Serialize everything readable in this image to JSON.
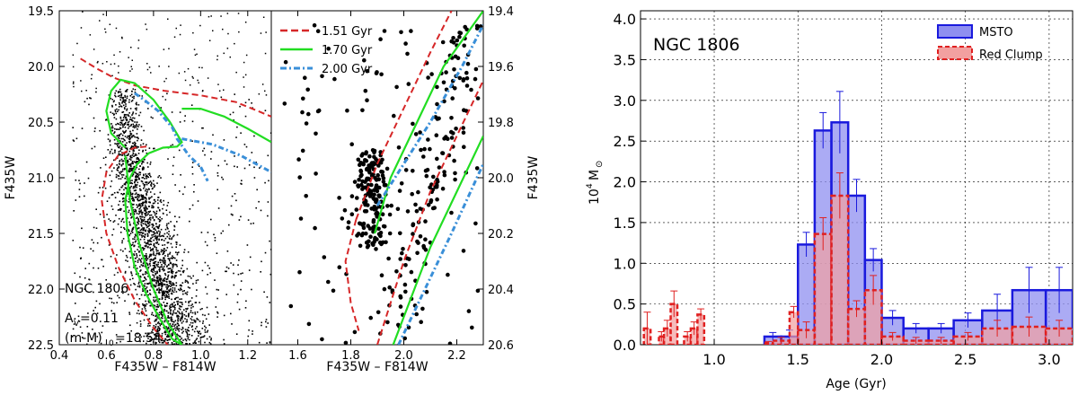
{
  "colors": {
    "red": "#d62728",
    "green": "#22dd22",
    "blue": "#3a8fd8",
    "msto_fill": "#8f8ff0",
    "msto_edge": "#1a1add",
    "rc_fill": "#f2a0a0",
    "rc_edge": "#e02020"
  },
  "chart_data": [
    {
      "type": "scatter",
      "panel": "left CMD",
      "xlabel": "F435W – F814W",
      "ylabel": "F435W",
      "xlim": [
        0.4,
        1.3
      ],
      "ylim": [
        22.5,
        19.5
      ],
      "xticks": [
        "0.4",
        "0.6",
        "0.8",
        "1.0",
        "1.2"
      ],
      "yticks": [
        "19.5",
        "20.0",
        "20.5",
        "21.0",
        "21.5",
        "22.0",
        "22.5"
      ],
      "annotations": [
        "NGC 1806",
        "A",
        "V",
        "=0.11",
        "(m-M)",
        "0",
        "=18.54"
      ],
      "isochrones": [
        {
          "name": "1.51 Gyr",
          "color": "red",
          "style": "dashed",
          "x": [
            0.49,
            0.56,
            0.63,
            0.72,
            0.85,
            1.0,
            1.15,
            1.3
          ],
          "y": [
            19.93,
            20.02,
            20.1,
            20.17,
            20.22,
            20.26,
            20.32,
            20.45
          ]
        },
        {
          "name": "1.51 Gyr lower",
          "color": "red",
          "style": "dashed",
          "x": [
            0.77,
            0.72,
            0.65,
            0.6,
            0.58,
            0.6,
            0.65,
            0.72,
            0.8,
            0.86
          ],
          "y": [
            20.72,
            20.73,
            20.8,
            20.95,
            21.2,
            21.5,
            21.8,
            22.1,
            22.35,
            22.5
          ]
        },
        {
          "name": "1.70 Gyr",
          "color": "green",
          "style": "solid",
          "x": [
            0.68,
            0.62,
            0.6,
            0.62,
            0.66,
            0.72,
            0.8,
            0.87,
            0.92,
            0.9,
            0.84,
            0.78,
            0.73,
            0.7,
            0.68,
            0.69,
            0.72,
            0.77,
            0.83,
            0.88,
            0.92
          ],
          "y": [
            20.73,
            20.6,
            20.4,
            20.22,
            20.12,
            20.15,
            20.3,
            20.5,
            20.68,
            20.72,
            20.73,
            20.78,
            20.88,
            21.0,
            21.2,
            21.5,
            21.8,
            22.05,
            22.28,
            22.45,
            22.5
          ]
        },
        {
          "name": "1.70 Gyr rgb",
          "color": "green",
          "style": "solid",
          "x": [
            0.92,
            1.0,
            1.1,
            1.2,
            1.3
          ],
          "y": [
            20.38,
            20.38,
            20.45,
            20.56,
            20.68
          ]
        },
        {
          "name": "2.00 Gyr",
          "color": "blue",
          "style": "dashdot",
          "x": [
            0.72,
            0.76,
            0.82,
            0.88,
            0.9,
            0.95,
            1.0,
            1.03
          ],
          "y": [
            20.24,
            20.3,
            20.4,
            20.55,
            20.65,
            20.8,
            20.9,
            21.03
          ],
          "rgb_x": [
            0.92,
            1.05,
            1.17,
            1.3
          ],
          "rgb_y": [
            20.65,
            20.7,
            20.8,
            20.95
          ]
        }
      ]
    },
    {
      "type": "scatter",
      "panel": "middle CMD zoom",
      "xlabel": "F435W – F814W",
      "ylabel": "F435W",
      "xlim": [
        1.5,
        2.3
      ],
      "ylim": [
        20.6,
        19.4
      ],
      "xticks": [
        "1.6",
        "1.8",
        "2.0",
        "2.2"
      ],
      "yticks": [
        "19.4",
        "19.6",
        "19.8",
        "20.0",
        "20.2",
        "20.4",
        "20.6"
      ],
      "legend": [
        "1.51 Gyr",
        "1.70 Gyr",
        "2.00 Gyr"
      ]
    },
    {
      "type": "bar",
      "panel": "right SFH histogram",
      "title": "NGC 1806",
      "xlabel": "Age (Gyr)",
      "ylabel": "10",
      "ylabel_sup": "4",
      "ylabel_unit": "M",
      "ylabel_sub": "⊙",
      "xlim": [
        0.56,
        3.14
      ],
      "ylim": [
        0,
        4.1
      ],
      "xticks": [
        "1.0",
        "1.5",
        "2.0",
        "2.5",
        "3.0"
      ],
      "yticks": [
        "0.0",
        "0.5",
        "1.0",
        "1.5",
        "2.0",
        "2.5",
        "3.0",
        "3.5",
        "4.0"
      ],
      "series": [
        {
          "name": "MSTO",
          "bins": [
            [
              1.3,
              1.4
            ],
            [
              1.4,
              1.5
            ],
            [
              1.5,
              1.6
            ],
            [
              1.6,
              1.7
            ],
            [
              1.7,
              1.8
            ],
            [
              1.8,
              1.9
            ],
            [
              1.9,
              2.0
            ],
            [
              2.0,
              2.13
            ],
            [
              2.13,
              2.28
            ],
            [
              2.28,
              2.43
            ],
            [
              2.43,
              2.6
            ],
            [
              2.6,
              2.78
            ],
            [
              2.78,
              2.98
            ],
            [
              2.98,
              3.14
            ]
          ],
          "values": [
            0.1,
            0.1,
            1.23,
            2.63,
            2.73,
            1.83,
            1.04,
            0.33,
            0.2,
            0.2,
            0.3,
            0.42,
            0.67,
            0.67
          ],
          "errors": [
            0.05,
            0.08,
            0.15,
            0.22,
            0.38,
            0.2,
            0.14,
            0.09,
            0.06,
            0.06,
            0.09,
            0.2,
            0.28,
            0.28
          ]
        },
        {
          "name": "Red Clump",
          "bins": [
            [
              0.58,
              0.62
            ],
            [
              0.67,
              0.7
            ],
            [
              0.7,
              0.74
            ],
            [
              0.74,
              0.78
            ],
            [
              0.82,
              0.86
            ],
            [
              0.86,
              0.9
            ],
            [
              0.9,
              0.94
            ],
            [
              1.3,
              1.35
            ],
            [
              1.35,
              1.45
            ],
            [
              1.45,
              1.5
            ],
            [
              1.5,
              1.6
            ],
            [
              1.6,
              1.7
            ],
            [
              1.7,
              1.8
            ],
            [
              1.8,
              1.9
            ],
            [
              1.9,
              2.0
            ],
            [
              2.0,
              2.13
            ],
            [
              2.13,
              2.28
            ],
            [
              2.28,
              2.43
            ],
            [
              2.43,
              2.6
            ],
            [
              2.6,
              2.78
            ],
            [
              2.78,
              2.98
            ],
            [
              2.98,
              3.14
            ]
          ],
          "values": [
            0.2,
            0.1,
            0.2,
            0.5,
            0.1,
            0.2,
            0.37,
            0.02,
            0.05,
            0.4,
            0.18,
            1.36,
            1.83,
            0.44,
            0.67,
            0.1,
            0.05,
            0.05,
            0.1,
            0.2,
            0.22,
            0.2
          ],
          "errors": [
            0.2,
            0.06,
            0.1,
            0.16,
            0.06,
            0.08,
            0.07,
            0.02,
            0.04,
            0.07,
            0.1,
            0.2,
            0.28,
            0.1,
            0.18,
            0.05,
            0.04,
            0.04,
            0.05,
            0.1,
            0.12,
            0.1
          ]
        }
      ],
      "legend": [
        "MSTO",
        "Red Clump"
      ],
      "grid": true
    }
  ]
}
